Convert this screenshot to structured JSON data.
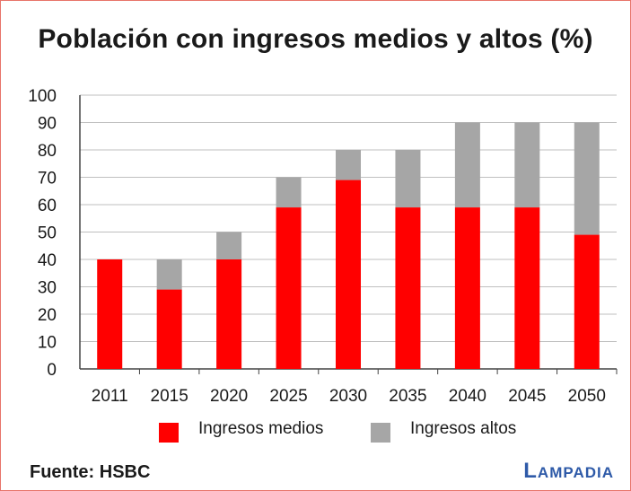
{
  "chart_data": {
    "type": "bar",
    "stacked": true,
    "title": "Población con ingresos medios y altos (%)",
    "categories": [
      "2011",
      "2015",
      "2020",
      "2025",
      "2030",
      "2035",
      "2040",
      "2045",
      "2050"
    ],
    "series": [
      {
        "name": "Ingresos medios",
        "color": "#ff0000",
        "values": [
          40,
          29,
          40,
          59,
          69,
          59,
          59,
          59,
          49
        ]
      },
      {
        "name": "Ingresos altos",
        "color": "#a6a6a6",
        "values": [
          0,
          11,
          10,
          11,
          11,
          21,
          31,
          31,
          41
        ]
      }
    ],
    "ylim": [
      0,
      100
    ],
    "yticks": [
      "0",
      "10",
      "20",
      "30",
      "40",
      "50",
      "60",
      "70",
      "80",
      "90",
      "100"
    ],
    "grid": true,
    "legend_position": "bottom"
  },
  "footer": {
    "source": "Fuente: HSBC",
    "brand": "Lampadia"
  }
}
